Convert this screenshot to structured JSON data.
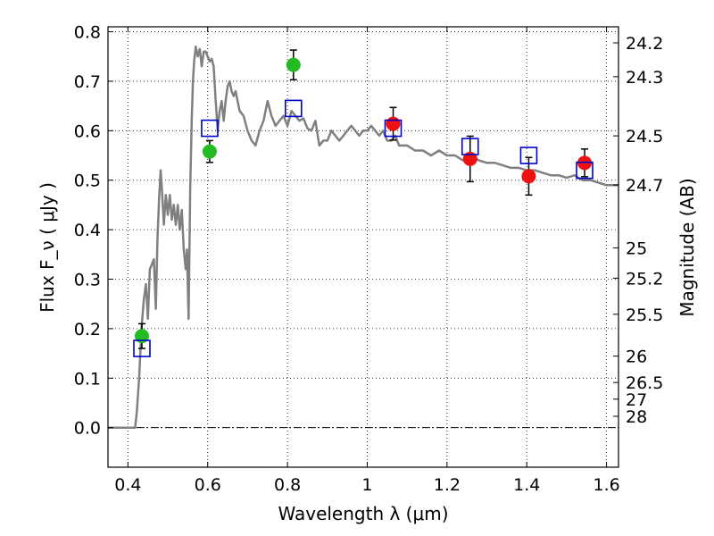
{
  "chart_data": {
    "type": "scatter",
    "xlabel": "Wavelength  λ (μm)",
    "ylabel": "Flux  F_ν  ( μJy )",
    "ylabel_right": "Magnitude (AB)",
    "xlim": [
      0.35,
      1.63
    ],
    "ylim": [
      -0.08,
      0.81
    ],
    "x_ticks": [
      0.4,
      0.6,
      0.8,
      1.0,
      1.2,
      1.4,
      1.6
    ],
    "x_tick_labels": [
      "0.4",
      "0.6",
      "0.8",
      "1",
      "1.2",
      "1.4",
      "1.6"
    ],
    "y_ticks": [
      0.0,
      0.1,
      0.2,
      0.3,
      0.4,
      0.5,
      0.6,
      0.7,
      0.8
    ],
    "y_tick_labels": [
      "0.0",
      "0.1",
      "0.2",
      "0.3",
      "0.4",
      "0.5",
      "0.6",
      "0.7",
      "0.8"
    ],
    "right_axis_ticks": [
      {
        "label": "24.2",
        "flux": 0.7775
      },
      {
        "label": "24.3",
        "flux": 0.7091
      },
      {
        "label": "24.5",
        "flux": 0.5896
      },
      {
        "label": "24.7",
        "flux": 0.4904
      },
      {
        "label": "25",
        "flux": 0.3631
      },
      {
        "label": "25.2",
        "flux": 0.302
      },
      {
        "label": "25.5",
        "flux": 0.2291
      },
      {
        "label": "26",
        "flux": 0.1445
      },
      {
        "label": "26.5",
        "flux": 0.0912
      },
      {
        "label": "27",
        "flux": 0.0575
      },
      {
        "label": "28",
        "flux": 0.0229
      }
    ],
    "grid": true,
    "colors": {
      "model": "#808080",
      "green_points": "#22bb22",
      "red_points": "#ee1111",
      "model_photometry": "#0000cc",
      "error_bars": "#000000",
      "zero_line": "#000000"
    },
    "model_spectrum": {
      "x": [
        0.35,
        0.418,
        0.422,
        0.428,
        0.434,
        0.44,
        0.445,
        0.45,
        0.455,
        0.46,
        0.465,
        0.47,
        0.474,
        0.478,
        0.482,
        0.486,
        0.49,
        0.495,
        0.5,
        0.505,
        0.51,
        0.515,
        0.52,
        0.525,
        0.53,
        0.535,
        0.54,
        0.545,
        0.548,
        0.552,
        0.556,
        0.56,
        0.563,
        0.566,
        0.57,
        0.575,
        0.58,
        0.585,
        0.59,
        0.595,
        0.6,
        0.605,
        0.61,
        0.615,
        0.62,
        0.625,
        0.63,
        0.635,
        0.64,
        0.645,
        0.65,
        0.655,
        0.66,
        0.665,
        0.67,
        0.675,
        0.68,
        0.69,
        0.7,
        0.71,
        0.72,
        0.73,
        0.74,
        0.75,
        0.76,
        0.77,
        0.78,
        0.79,
        0.8,
        0.81,
        0.82,
        0.83,
        0.84,
        0.85,
        0.86,
        0.87,
        0.88,
        0.89,
        0.9,
        0.91,
        0.92,
        0.93,
        0.94,
        0.95,
        0.96,
        0.97,
        0.98,
        0.99,
        1.0,
        1.01,
        1.02,
        1.03,
        1.04,
        1.05,
        1.06,
        1.07,
        1.08,
        1.1,
        1.12,
        1.14,
        1.16,
        1.18,
        1.2,
        1.22,
        1.24,
        1.26,
        1.28,
        1.3,
        1.32,
        1.34,
        1.36,
        1.38,
        1.4,
        1.42,
        1.44,
        1.46,
        1.48,
        1.5,
        1.52,
        1.54,
        1.56,
        1.58,
        1.6,
        1.63
      ],
      "y": [
        0.0,
        0.0,
        0.03,
        0.1,
        0.2,
        0.26,
        0.29,
        0.22,
        0.32,
        0.33,
        0.34,
        0.24,
        0.38,
        0.46,
        0.52,
        0.47,
        0.41,
        0.47,
        0.43,
        0.47,
        0.42,
        0.45,
        0.41,
        0.45,
        0.4,
        0.44,
        0.36,
        0.32,
        0.36,
        0.22,
        0.48,
        0.62,
        0.7,
        0.74,
        0.77,
        0.75,
        0.765,
        0.73,
        0.76,
        0.76,
        0.75,
        0.74,
        0.745,
        0.73,
        0.66,
        0.6,
        0.64,
        0.66,
        0.62,
        0.66,
        0.69,
        0.7,
        0.68,
        0.67,
        0.68,
        0.66,
        0.64,
        0.63,
        0.6,
        0.58,
        0.57,
        0.6,
        0.62,
        0.66,
        0.63,
        0.61,
        0.62,
        0.63,
        0.61,
        0.64,
        0.63,
        0.62,
        0.625,
        0.605,
        0.6,
        0.62,
        0.57,
        0.58,
        0.58,
        0.6,
        0.59,
        0.58,
        0.59,
        0.6,
        0.61,
        0.6,
        0.59,
        0.6,
        0.6,
        0.61,
        0.6,
        0.59,
        0.6,
        0.58,
        0.58,
        0.59,
        0.57,
        0.57,
        0.56,
        0.56,
        0.55,
        0.56,
        0.55,
        0.55,
        0.54,
        0.55,
        0.54,
        0.535,
        0.535,
        0.53,
        0.525,
        0.525,
        0.52,
        0.52,
        0.515,
        0.51,
        0.51,
        0.505,
        0.51,
        0.5,
        0.5,
        0.495,
        0.49,
        0.49
      ]
    },
    "series": [
      {
        "marker": "circle",
        "color": "#22bb22",
        "x": [
          0.435,
          0.605,
          0.815
        ],
        "y": [
          0.185,
          0.558,
          0.733
        ],
        "yerr": [
          0.025,
          0.022,
          0.03
        ]
      },
      {
        "marker": "circle",
        "color": "#ee1111",
        "x": [
          1.065,
          1.258,
          1.405,
          1.545
        ],
        "y": [
          0.614,
          0.543,
          0.508,
          0.535
        ],
        "yerr": [
          0.033,
          0.046,
          0.038,
          0.028
        ]
      },
      {
        "marker": "open-square",
        "color": "#0000cc",
        "x": [
          0.435,
          0.605,
          0.815,
          1.065,
          1.258,
          1.405,
          1.545
        ],
        "y": [
          0.16,
          0.605,
          0.645,
          0.605,
          0.568,
          0.55,
          0.52
        ]
      }
    ]
  }
}
